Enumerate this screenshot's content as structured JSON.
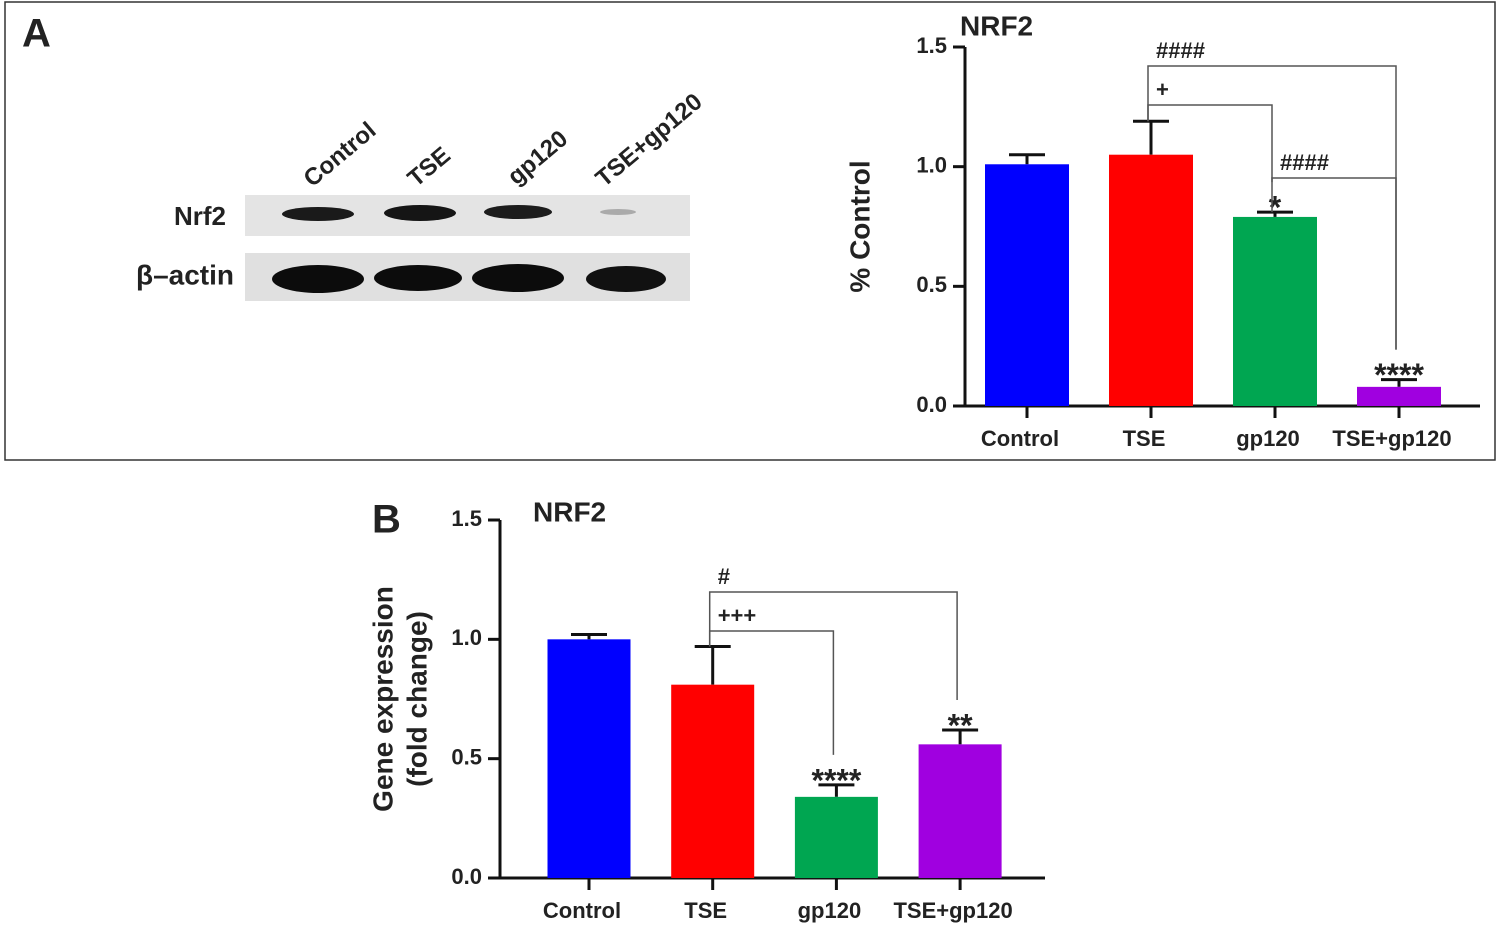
{
  "panels": [
    "A",
    "B"
  ],
  "blot": {
    "lanes": [
      "Control",
      "TSE",
      "gp120",
      "TSE+gp120"
    ],
    "rows": [
      "Nrf2",
      "β–actin"
    ]
  },
  "chart_data": [
    {
      "type": "bar",
      "title": "NRF2",
      "ylabel": [
        "% Control"
      ],
      "categories": [
        "Control",
        "TSE",
        "gp120",
        "TSE+gp120"
      ],
      "values": [
        1.01,
        1.05,
        0.79,
        0.08
      ],
      "errors": [
        0.04,
        0.14,
        0.02,
        0.03
      ],
      "colors": [
        "#0000ff",
        "#ff0000",
        "#00a651",
        "#a000e0"
      ],
      "annotations": [
        null,
        null,
        "*",
        "****"
      ],
      "brackets": [
        {
          "label": "####",
          "groups": [
            "TSE",
            "TSE+gp120"
          ]
        },
        {
          "label": "+",
          "groups": [
            "TSE",
            "gp120"
          ]
        },
        {
          "label": "####",
          "groups": [
            "gp120",
            "TSE+gp120"
          ]
        }
      ],
      "ylim": [
        0,
        1.5
      ],
      "yticks": [
        {
          "value": 0,
          "label": "0.0"
        },
        0.5,
        {
          "value": 1,
          "label": "1.0"
        },
        1.5
      ]
    },
    {
      "type": "bar",
      "title": "NRF2",
      "ylabel": [
        "Gene expression",
        "(fold change)"
      ],
      "categories": [
        "Control",
        "TSE",
        "gp120",
        "TSE+gp120"
      ],
      "values": [
        1.0,
        0.81,
        0.34,
        0.56
      ],
      "errors": [
        0.02,
        0.16,
        0.05,
        0.06
      ],
      "colors": [
        "#0000ff",
        "#ff0000",
        "#00a651",
        "#a000e0"
      ],
      "annotations": [
        null,
        null,
        "****",
        "**"
      ],
      "brackets": [
        {
          "label": "#",
          "groups": [
            "TSE",
            "TSE+gp120"
          ]
        },
        {
          "label": "+++",
          "groups": [
            "TSE",
            "gp120"
          ]
        }
      ],
      "ylim": [
        0,
        1.5
      ],
      "yticks": [
        {
          "value": 0,
          "label": "0.0"
        },
        0.5,
        {
          "value": 1,
          "label": "1.0"
        },
        1.5
      ]
    }
  ]
}
